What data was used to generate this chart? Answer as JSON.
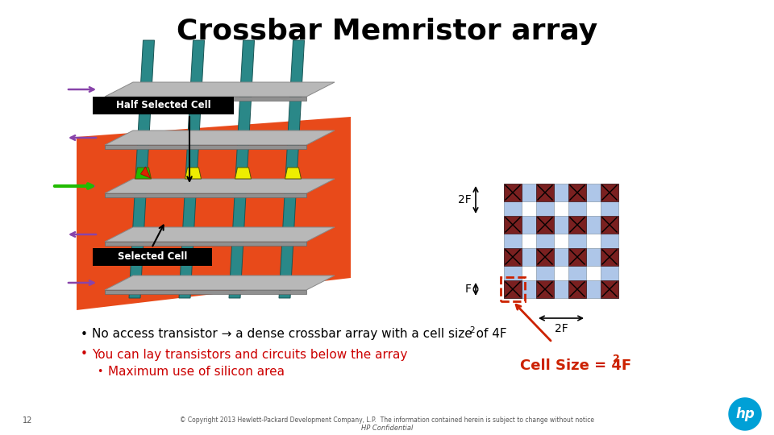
{
  "title": "Crossbar Memristor array",
  "title_fontsize": 26,
  "title_fontweight": "bold",
  "bg_color": "#ffffff",
  "bullet1": "No access transistor → a dense crossbar array with a cell size of 4F",
  "bullet1_super": "2",
  "bullet2": "You can lay transistors and circuits below the array",
  "bullet3": "Maximum use of silicon area",
  "bullet_color": "#000000",
  "bullet2_color": "#cc0000",
  "bullet3_color": "#cc0000",
  "label_half": "Half Selected Cell",
  "label_selected": "Selected Cell",
  "label_cell_size": "Cell Size = 4F",
  "label_cell_size_super": "2",
  "cell_size_color": "#cc2200",
  "crossbar_bg_color": "#e84a1a",
  "grid_blue": "#aec6e8",
  "grid_brown": "#7a2020",
  "footer_line1": "© Copyright 2013 Hewlett-Packard Development Company, L.P.  The information contained herein is subject to change without notice",
  "footer_line2": "HP Confidential",
  "footer_num": "12",
  "red_arrow_color": "#cc2200",
  "purple_color": "#8844aa",
  "green_color": "#22bb00",
  "yellow_color": "#eeee00",
  "teal_color": "#2a8888"
}
